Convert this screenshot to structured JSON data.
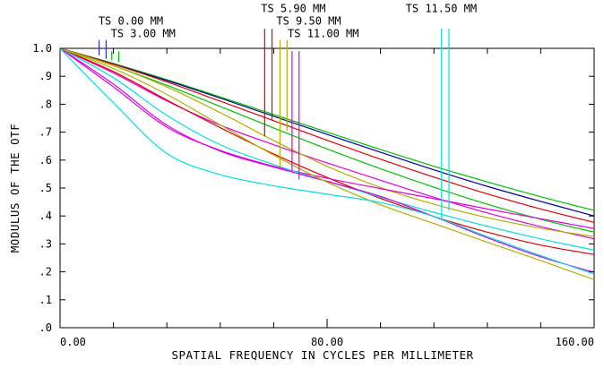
{
  "chart_data": {
    "type": "line",
    "title": "",
    "xlabel": "SPATIAL FREQUENCY IN CYCLES PER MILLIMETER",
    "ylabel": "MODULUS OF THE OTF",
    "xlim": [
      0,
      160
    ],
    "ylim": [
      0,
      1
    ],
    "grid": false,
    "legend": "none",
    "x_tick_labels": [
      {
        "value": 0,
        "label": "0.00"
      },
      {
        "value": 80,
        "label": "80.00"
      },
      {
        "value": 160,
        "label": "160.00"
      }
    ],
    "x_minor_ticks": [
      16,
      32,
      48,
      64,
      96,
      112,
      128,
      144
    ],
    "y_tick_labels": [
      {
        "value": 0.0,
        "label": ".0"
      },
      {
        "value": 0.1,
        "label": ".1"
      },
      {
        "value": 0.2,
        "label": ".2"
      },
      {
        "value": 0.3,
        "label": ".3"
      },
      {
        "value": 0.4,
        "label": ".4"
      },
      {
        "value": 0.5,
        "label": ".5"
      },
      {
        "value": 0.6,
        "label": ".6"
      },
      {
        "value": 0.7,
        "label": ".7"
      },
      {
        "value": 0.8,
        "label": ".8"
      },
      {
        "value": 0.9,
        "label": ".9"
      },
      {
        "value": 1.0,
        "label": "1.0"
      }
    ],
    "field_labels": [
      {
        "text": "TS 0.00 MM",
        "x": 11.5,
        "y": 1.085,
        "align": "start"
      },
      {
        "text": "TS 3.00 MM",
        "x": 15.2,
        "y": 1.04,
        "align": "start"
      },
      {
        "text": "TS 5.90 MM",
        "x": 60.2,
        "y": 1.13,
        "align": "start"
      },
      {
        "text": "TS 9.50 MM",
        "x": 64.8,
        "y": 1.085,
        "align": "start"
      },
      {
        "text": "TS 11.00 MM",
        "x": 68.2,
        "y": 1.04,
        "align": "start"
      },
      {
        "text": "TS 11.50 MM",
        "x": 114.2,
        "y": 1.13,
        "align": "middle"
      }
    ],
    "markers": [
      {
        "x": 11.7,
        "y_top": 1.03,
        "y_bottom": 0.975,
        "color": "#3030c8"
      },
      {
        "x": 13.8,
        "y_top": 1.03,
        "y_bottom": 0.963,
        "color": "#3030c8"
      },
      {
        "x": 15.5,
        "y_top": 0.99,
        "y_bottom": 0.957,
        "color": "#00c000"
      },
      {
        "x": 17.6,
        "y_top": 0.99,
        "y_bottom": 0.95,
        "color": "#00c000"
      },
      {
        "x": 61.3,
        "y_top": 1.07,
        "y_bottom": 0.685,
        "color": "#e00000"
      },
      {
        "x": 63.5,
        "y_top": 1.07,
        "y_bottom": 0.745,
        "color": "#e00000"
      },
      {
        "x": 65.9,
        "y_top": 1.03,
        "y_bottom": 0.575,
        "color": "#b0b000"
      },
      {
        "x": 68.0,
        "y_top": 1.03,
        "y_bottom": 0.705,
        "color": "#b0b000"
      },
      {
        "x": 69.5,
        "y_top": 0.99,
        "y_bottom": 0.56,
        "color": "#e000e0"
      },
      {
        "x": 71.6,
        "y_top": 0.99,
        "y_bottom": 0.53,
        "color": "#e000e0"
      },
      {
        "x": 114.3,
        "y_top": 1.07,
        "y_bottom": 0.385,
        "color": "#00e0e0"
      },
      {
        "x": 116.5,
        "y_top": 1.07,
        "y_bottom": 0.42,
        "color": "#00e0e0"
      }
    ],
    "series": [
      {
        "color": "#00c000",
        "x": [
          0,
          16,
          32,
          48,
          64,
          80,
          96,
          112,
          128,
          144,
          160
        ],
        "values": [
          1.0,
          0.946,
          0.888,
          0.826,
          0.763,
          0.7,
          0.638,
          0.578,
          0.522,
          0.469,
          0.42
        ]
      },
      {
        "color": "#0000a0",
        "x": [
          0,
          16,
          32,
          48,
          64,
          80,
          96,
          112,
          128,
          144,
          160
        ],
        "values": [
          1.0,
          0.944,
          0.885,
          0.822,
          0.757,
          0.692,
          0.628,
          0.565,
          0.506,
          0.452,
          0.4
        ]
      },
      {
        "color": "#e00000",
        "x": [
          0,
          16,
          32,
          48,
          64,
          80,
          96,
          112,
          128,
          144,
          160
        ],
        "values": [
          1.0,
          0.943,
          0.88,
          0.811,
          0.741,
          0.671,
          0.603,
          0.539,
          0.479,
          0.425,
          0.377
        ]
      },
      {
        "color": "#00c000",
        "x": [
          0,
          16,
          32,
          48,
          64,
          80,
          96,
          112,
          128,
          144,
          160
        ],
        "values": [
          1.0,
          0.938,
          0.868,
          0.792,
          0.715,
          0.64,
          0.569,
          0.503,
          0.442,
          0.388,
          0.342
        ]
      },
      {
        "color": "#e000e0",
        "x": [
          0,
          16,
          32,
          48,
          64,
          80,
          96,
          112,
          128,
          144,
          160
        ],
        "values": [
          1.0,
          0.912,
          0.812,
          0.725,
          0.655,
          0.59,
          0.528,
          0.467,
          0.411,
          0.362,
          0.318
        ]
      },
      {
        "color": "#b0b000",
        "x": [
          0,
          16,
          32,
          48,
          64,
          80,
          96,
          112,
          128,
          144,
          160
        ],
        "values": [
          1.0,
          0.938,
          0.862,
          0.77,
          0.67,
          0.578,
          0.502,
          0.442,
          0.394,
          0.356,
          0.326
        ]
      },
      {
        "color": "#e00000",
        "x": [
          0,
          16,
          32,
          48,
          64,
          80,
          96,
          112,
          128,
          144,
          160
        ],
        "values": [
          1.0,
          0.917,
          0.815,
          0.716,
          0.622,
          0.538,
          0.463,
          0.398,
          0.342,
          0.296,
          0.262
        ]
      },
      {
        "color": "#e000e0",
        "x": [
          0,
          16,
          32,
          48,
          64,
          80,
          96,
          112,
          128,
          144,
          160
        ],
        "values": [
          1.0,
          0.862,
          0.718,
          0.635,
          0.578,
          0.535,
          0.498,
          0.462,
          0.425,
          0.39,
          0.355
        ]
      },
      {
        "color": "#00e0e0",
        "x": [
          0,
          16,
          32,
          48,
          64,
          80,
          96,
          112,
          128,
          144,
          160
        ],
        "values": [
          1.0,
          0.895,
          0.76,
          0.655,
          0.584,
          0.524,
          0.467,
          0.413,
          0.363,
          0.318,
          0.278
        ]
      },
      {
        "color": "#e000e0",
        "x": [
          0,
          16,
          32,
          48,
          64,
          80,
          96,
          112,
          128,
          144,
          160
        ],
        "values": [
          1.0,
          0.872,
          0.725,
          0.632,
          0.575,
          0.524,
          0.47,
          0.398,
          0.322,
          0.254,
          0.198
        ]
      },
      {
        "color": "#b0b000",
        "x": [
          0,
          16,
          32,
          48,
          64,
          80,
          96,
          112,
          128,
          144,
          160
        ],
        "values": [
          1.0,
          0.928,
          0.835,
          0.726,
          0.618,
          0.521,
          0.44,
          0.373,
          0.306,
          0.24,
          0.172
        ]
      },
      {
        "color": "#00e0e0",
        "x": [
          0,
          16,
          32,
          48,
          64,
          80,
          96,
          112,
          128,
          144,
          160
        ],
        "values": [
          1.0,
          0.805,
          0.624,
          0.548,
          0.508,
          0.478,
          0.448,
          0.398,
          0.326,
          0.258,
          0.192
        ]
      }
    ]
  }
}
